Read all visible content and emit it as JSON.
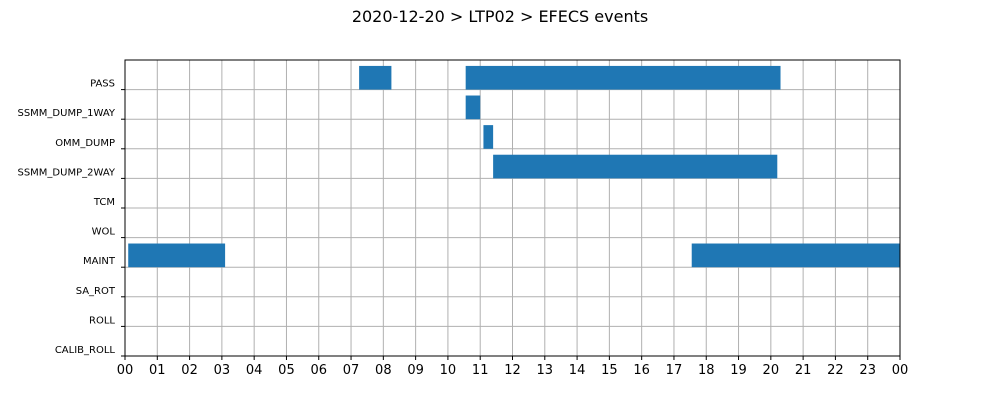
{
  "chart_data": {
    "type": "bar",
    "orientation": "horizontal",
    "title": "2020-12-20 > LTP02 > EFECS events",
    "xlabel": "",
    "ylabel": "",
    "x_range_hours": [
      0,
      24
    ],
    "x_tick_labels": [
      "00",
      "01",
      "02",
      "03",
      "04",
      "05",
      "06",
      "07",
      "08",
      "09",
      "10",
      "11",
      "12",
      "13",
      "14",
      "15",
      "16",
      "17",
      "18",
      "19",
      "20",
      "21",
      "22",
      "23",
      "00"
    ],
    "categories": [
      "PASS",
      "SSMM_DUMP_1WAY",
      "OMM_DUMP",
      "SSMM_DUMP_2WAY",
      "TCM",
      "WOL",
      "MAINT",
      "SA_ROT",
      "ROLL",
      "CALIB_ROLL"
    ],
    "grid": true,
    "bar_color": "#1f77b4",
    "events": [
      {
        "category": "PASS",
        "start_hour": 7.25,
        "end_hour": 8.25
      },
      {
        "category": "PASS",
        "start_hour": 10.55,
        "end_hour": 20.3
      },
      {
        "category": "SSMM_DUMP_1WAY",
        "start_hour": 10.55,
        "end_hour": 11.0
      },
      {
        "category": "OMM_DUMP",
        "start_hour": 11.1,
        "end_hour": 11.4
      },
      {
        "category": "SSMM_DUMP_2WAY",
        "start_hour": 11.4,
        "end_hour": 20.2
      },
      {
        "category": "MAINT",
        "start_hour": 0.1,
        "end_hour": 3.1
      },
      {
        "category": "MAINT",
        "start_hour": 17.55,
        "end_hour": 24.0
      }
    ]
  }
}
